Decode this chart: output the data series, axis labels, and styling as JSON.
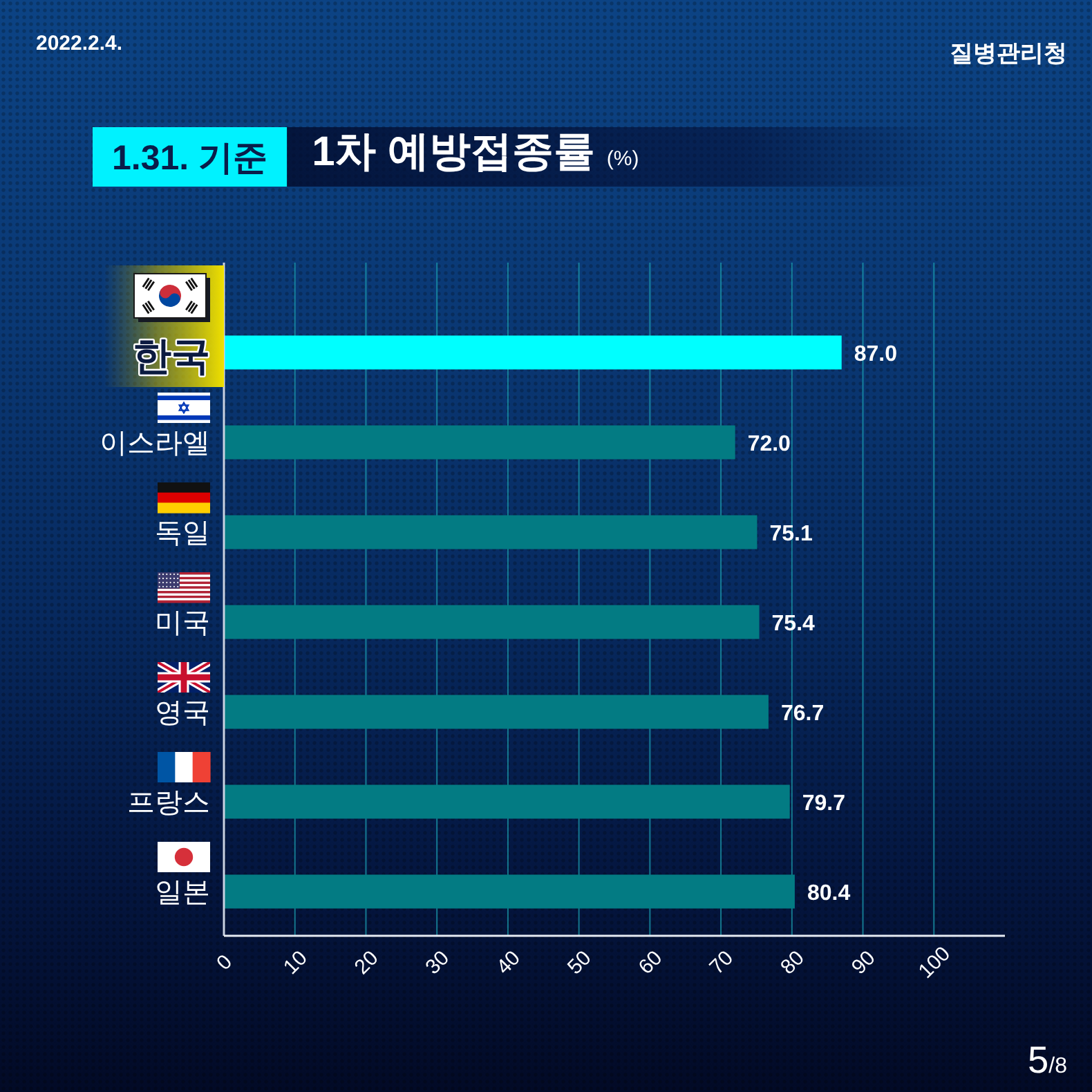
{
  "chart_data": {
    "type": "bar",
    "orientation": "horizontal",
    "title": "1차 예방접종률 (%)",
    "subtitle": "1.31. 기준",
    "categories": [
      "한국",
      "이스라엘",
      "독일",
      "미국",
      "영국",
      "프랑스",
      "일본"
    ],
    "values": [
      87.0,
      72.0,
      75.1,
      75.4,
      76.7,
      79.7,
      80.4
    ],
    "colors": [
      "#00ffff",
      "#037b83",
      "#037b83",
      "#037b83",
      "#037b83",
      "#037b83",
      "#037b83"
    ],
    "value_labels": [
      "87.0",
      "72.0",
      "75.1",
      "75.4",
      "76.7",
      "79.7",
      "80.4"
    ],
    "xlim": [
      0,
      110
    ],
    "xticks": [
      0,
      10,
      20,
      30,
      40,
      50,
      60,
      70,
      80,
      90,
      100
    ],
    "grid": "x",
    "annotations": [
      "2022.2.4.",
      "질병관리청",
      "5/8"
    ]
  }
}
